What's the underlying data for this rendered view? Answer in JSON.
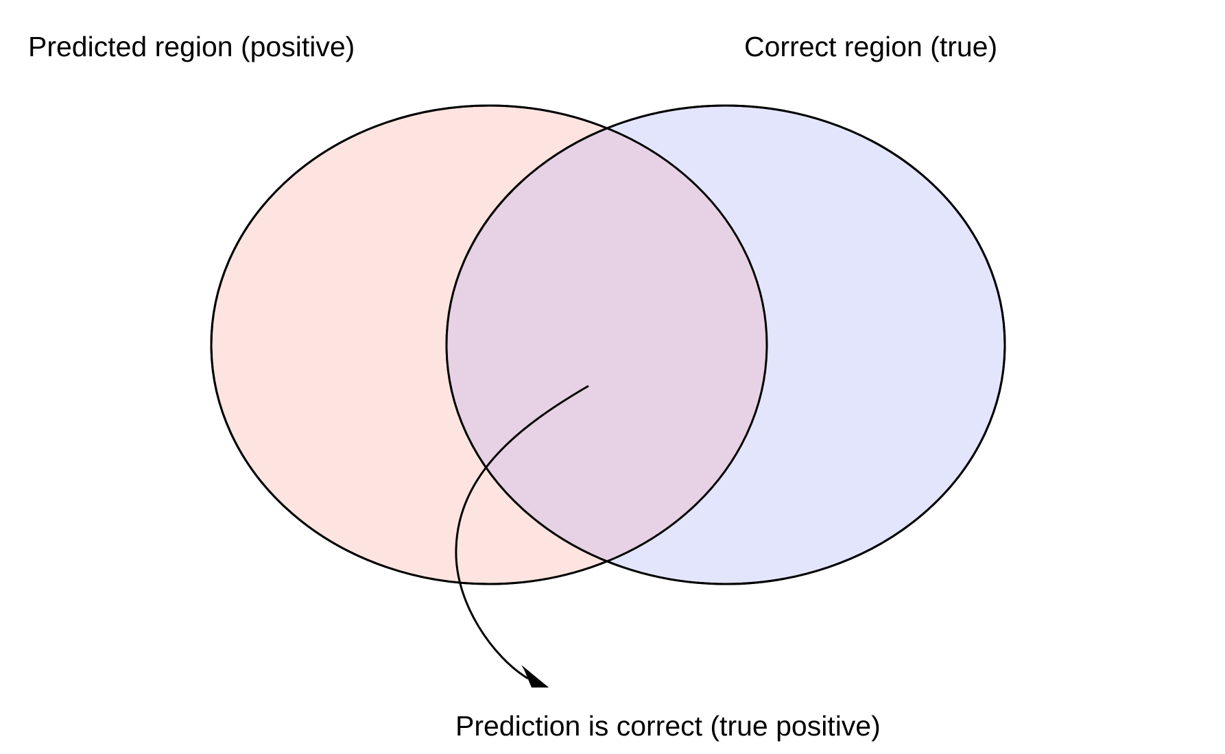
{
  "labels": {
    "predicted_region": "Predicted region (positive)",
    "correct_region": "Correct region (true)",
    "intersection_note": "Prediction is correct (true positive)"
  },
  "colors": {
    "predicted_fill": "#fde4e0",
    "correct_fill": "#e3e5fd",
    "intersection_fill": "#e6d2e4",
    "stroke": "#000000"
  }
}
